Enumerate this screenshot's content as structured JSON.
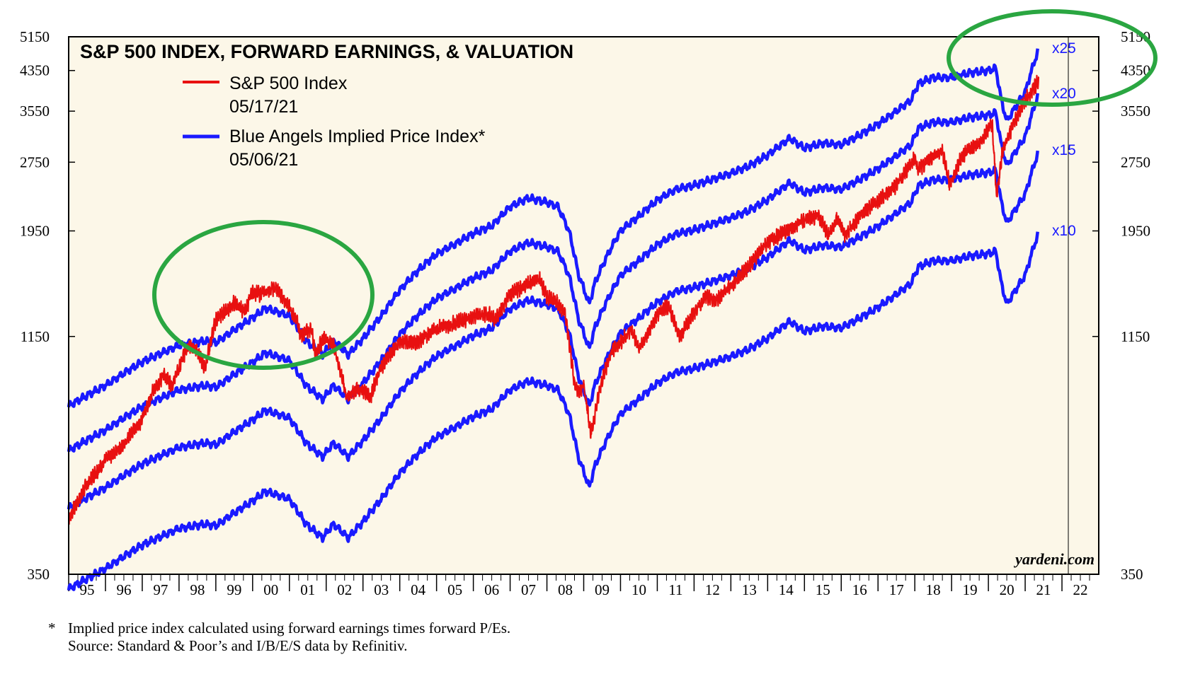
{
  "chart_data": {
    "type": "line",
    "title": "S&P 500 INDEX, FORWARD EARNINGS, & VALUATION",
    "y_scale": "log",
    "ylim": [
      350,
      5150
    ],
    "y_ticks": [
      350,
      1150,
      1950,
      2750,
      3550,
      4350,
      5150
    ],
    "y_tick_labels": [
      "350",
      "1150",
      "1950",
      "2750",
      "3550",
      "4350",
      "5150"
    ],
    "x_range": [
      1995,
      2023
    ],
    "x_ticks": [
      {
        "label": "95",
        "year": 1995
      },
      {
        "label": "96",
        "year": 1996
      },
      {
        "label": "97",
        "year": 1997
      },
      {
        "label": "98",
        "year": 1998
      },
      {
        "label": "99",
        "year": 1999
      },
      {
        "label": "00",
        "year": 2000
      },
      {
        "label": "01",
        "year": 2001
      },
      {
        "label": "02",
        "year": 2002
      },
      {
        "label": "03",
        "year": 2003
      },
      {
        "label": "04",
        "year": 2004
      },
      {
        "label": "05",
        "year": 2005
      },
      {
        "label": "06",
        "year": 2006
      },
      {
        "label": "07",
        "year": 2007
      },
      {
        "label": "08",
        "year": 2008
      },
      {
        "label": "09",
        "year": 2009
      },
      {
        "label": "10",
        "year": 2010
      },
      {
        "label": "11",
        "year": 2011
      },
      {
        "label": "12",
        "year": 2012
      },
      {
        "label": "13",
        "year": 2013
      },
      {
        "label": "14",
        "year": 2014
      },
      {
        "label": "15",
        "year": 2015
      },
      {
        "label": "16",
        "year": 2016
      },
      {
        "label": "17",
        "year": 2017
      },
      {
        "label": "18",
        "year": 2018
      },
      {
        "label": "19",
        "year": 2019
      },
      {
        "label": "20",
        "year": 2020
      },
      {
        "label": "21",
        "year": 2021
      },
      {
        "label": "22",
        "year": 2022
      }
    ],
    "legend": {
      "sp500_label": "S&P 500 Index",
      "sp500_date": "05/17/21",
      "implied_label": "Blue Angels Implied Price Index*",
      "implied_date": "05/06/21"
    },
    "colors": {
      "sp500": "#e81010",
      "implied": "#1a1aff",
      "highlight": "#2aa641",
      "background": "#fcf7e8"
    },
    "forward_earnings_x": [
      1995.0,
      1996.0,
      1997.0,
      1998.0,
      1998.7,
      1999.0,
      2000.0,
      2000.35,
      2001.0,
      2001.45,
      2001.9,
      2002.2,
      2002.6,
      2003.0,
      2003.5,
      2004.0,
      2004.5,
      2005.0,
      2005.5,
      2006.0,
      2006.5,
      2007.0,
      2007.5,
      2008.0,
      2008.3,
      2008.6,
      2008.85,
      2009.15,
      2009.3,
      2009.6,
      2010.0,
      2010.5,
      2011.0,
      2011.5,
      2012.0,
      2012.5,
      2013.0,
      2013.5,
      2014.0,
      2014.6,
      2015.0,
      2015.5,
      2016.0,
      2016.5,
      2017.0,
      2017.5,
      2017.9,
      2018.1,
      2018.5,
      2019.0,
      2019.5,
      2020.0,
      2020.2,
      2020.35,
      2020.5,
      2021.0,
      2021.35
    ],
    "forward_earnings_y": [
      32.5,
      36,
      40.5,
      44,
      45,
      44.6,
      50.5,
      53,
      51,
      45,
      42,
      45,
      42,
      45.5,
      51,
      58,
      64,
      69.5,
      73,
      77,
      80,
      88,
      92,
      90,
      88,
      78,
      63,
      54,
      60,
      68,
      78,
      84,
      91,
      96,
      98,
      101,
      104,
      108,
      114,
      124,
      118,
      121,
      120,
      126,
      133,
      142,
      150,
      163,
      168,
      168,
      172,
      174,
      176,
      150,
      135,
      156,
      192
    ],
    "series": [
      {
        "name": "x25",
        "multiple": 25
      },
      {
        "name": "x20",
        "multiple": 20
      },
      {
        "name": "x15",
        "multiple": 15
      },
      {
        "name": "x10",
        "multiple": 10
      }
    ],
    "sp500_x": [
      1995.0,
      1995.5,
      1996.0,
      1996.5,
      1997.0,
      1997.3,
      1997.6,
      1997.8,
      1998.0,
      1998.25,
      1998.55,
      1998.7,
      1999.0,
      1999.5,
      1999.8,
      2000.0,
      2000.2,
      2000.6,
      2000.8,
      2001.2,
      2001.3,
      2001.6,
      2001.7,
      2001.95,
      2002.2,
      2002.55,
      2002.8,
      2003.0,
      2003.2,
      2003.5,
      2004.0,
      2004.5,
      2005.0,
      2005.5,
      2006.0,
      2006.4,
      2006.6,
      2007.0,
      2007.5,
      2007.8,
      2008.0,
      2008.3,
      2008.5,
      2008.75,
      2008.9,
      2009.0,
      2009.2,
      2009.5,
      2009.8,
      2010.0,
      2010.3,
      2010.5,
      2010.8,
      2011.0,
      2011.3,
      2011.6,
      2011.75,
      2012.0,
      2012.3,
      2012.6,
      2013.0,
      2013.5,
      2014.0,
      2014.5,
      2015.0,
      2015.4,
      2015.65,
      2015.9,
      2016.1,
      2016.5,
      2017.0,
      2017.5,
      2018.0,
      2018.1,
      2018.5,
      2018.75,
      2018.95,
      2019.3,
      2019.5,
      2019.8,
      2020.0,
      2020.1,
      2020.22,
      2020.4,
      2020.7,
      2021.0,
      2021.2,
      2021.37
    ],
    "sp500_y": [
      460,
      550,
      620,
      670,
      760,
      880,
      950,
      900,
      980,
      1110,
      1050,
      980,
      1250,
      1360,
      1300,
      1440,
      1420,
      1470,
      1410,
      1250,
      1150,
      1200,
      1050,
      1150,
      1100,
      850,
      880,
      880,
      850,
      990,
      1120,
      1120,
      1200,
      1230,
      1270,
      1290,
      1250,
      1420,
      1500,
      1530,
      1400,
      1360,
      1280,
      900,
      870,
      900,
      700,
      930,
      1080,
      1120,
      1190,
      1080,
      1180,
      1290,
      1340,
      1150,
      1200,
      1300,
      1400,
      1380,
      1480,
      1640,
      1840,
      1950,
      2060,
      2100,
      1900,
      2080,
      1900,
      2100,
      2280,
      2450,
      2800,
      2650,
      2850,
      2900,
      2450,
      2850,
      2950,
      3050,
      3250,
      3350,
      2300,
      2950,
      3350,
      3750,
      3950,
      4150
    ],
    "annotations": {
      "brand": "yardeni.com",
      "footnote_marker": "*",
      "footnote_line1": "Implied price index calculated using forward earnings times forward P/Es.",
      "footnote_line2": "Source: Standard & Poor’s and I/B/E/S data by Refinitiv."
    }
  }
}
